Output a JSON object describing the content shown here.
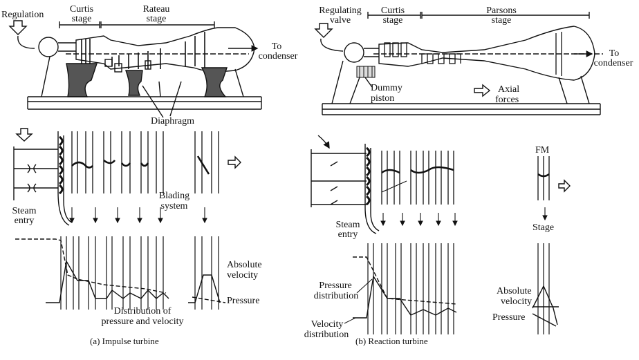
{
  "impulse": {
    "regulation": "Regulation",
    "curtis_1": "Curtis",
    "curtis_2": "stage",
    "rateau_1": "Rateau",
    "rateau_2": "stage",
    "to_1": "To",
    "to_2": "condenser",
    "diaphragm": "Diaphragm",
    "blading_1": "Blading",
    "blading_2": "system",
    "steam_1": "Steam",
    "steam_2": "entry",
    "abs_1": "Absolute",
    "abs_2": "velocity",
    "pressure": "Pressure",
    "dist_1": "Distribution of",
    "dist_2": "pressure and velocity",
    "caption": "(a)  Impulse turbine"
  },
  "reaction": {
    "reg_1": "Regulating",
    "reg_2": "valve",
    "curtis_1": "Curtis",
    "curtis_2": "stage",
    "parsons_1": "Parsons",
    "parsons_2": "stage",
    "to_1": "To",
    "to_2": "condenser",
    "dummy_1": "Dummy",
    "dummy_2": "piston",
    "axial_1": "Axial",
    "axial_2": "forces",
    "fm": "FM",
    "stage": "Stage",
    "steam_1": "Steam",
    "steam_2": "entry",
    "pdist_1": "Pressure",
    "pdist_2": "distribution",
    "vdist_1": "Velocity",
    "vdist_2": "distribution",
    "abs_1": "Absolute",
    "abs_2": "velocity",
    "pressure": "Pressure",
    "caption": "(b)  Reaction turbine"
  }
}
